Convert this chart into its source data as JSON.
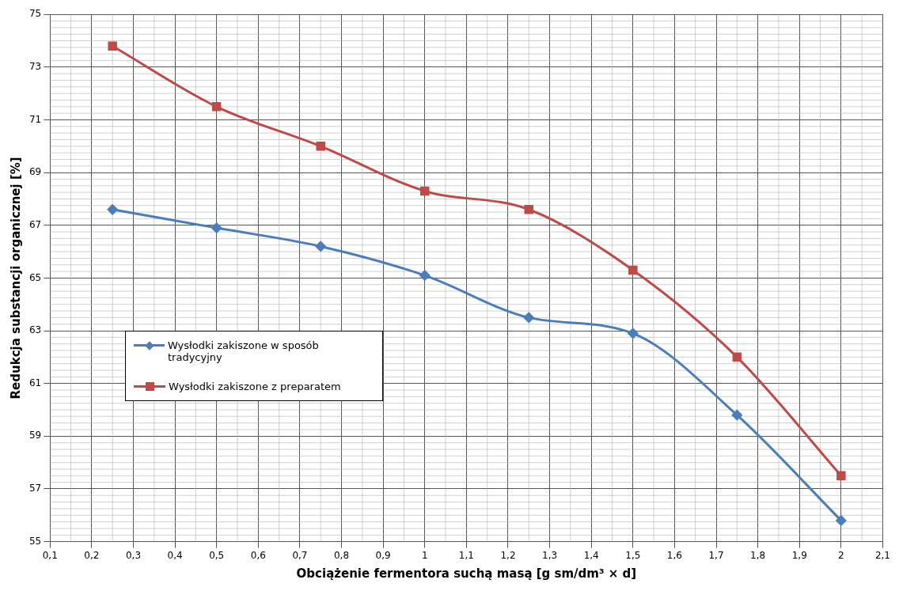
{
  "chart_data": {
    "type": "line",
    "xlabel": "Obciążenie fermentora suchą masą [g sm/dm³ × d]",
    "ylabel": "Redukcja substancji organicznej [%]",
    "x": [
      0.25,
      0.5,
      0.75,
      1,
      1.25,
      1.5,
      1.75,
      2
    ],
    "series": [
      {
        "name": "Wysłodki zakiszone w sposób tradycyjny",
        "color": "#4a7ebb",
        "marker": "diamond",
        "values": [
          67.6,
          66.9,
          66.2,
          65.1,
          63.5,
          62.9,
          59.8,
          55.8
        ]
      },
      {
        "name": "Wysłodki zakiszone z preparatem",
        "color": "#be4b48",
        "marker": "square",
        "values": [
          73.8,
          71.5,
          70.0,
          68.3,
          67.6,
          65.3,
          62.0,
          57.5
        ]
      }
    ],
    "xlim": [
      0.1,
      2.1
    ],
    "xticks": [
      {
        "value": 0.1,
        "label": "0,1"
      },
      {
        "value": 0.2,
        "label": "0,2"
      },
      {
        "value": 0.3,
        "label": "0,3"
      },
      {
        "value": 0.4,
        "label": "0,4"
      },
      {
        "value": 0.5,
        "label": "0,5"
      },
      {
        "value": 0.6,
        "label": "0,6"
      },
      {
        "value": 0.7,
        "label": "0,7"
      },
      {
        "value": 0.8,
        "label": "0,8"
      },
      {
        "value": 0.9,
        "label": "0,9"
      },
      {
        "value": 1,
        "label": "1"
      },
      {
        "value": 1.1,
        "label": "1,1"
      },
      {
        "value": 1.2,
        "label": "1,2"
      },
      {
        "value": 1.3,
        "label": "1,3"
      },
      {
        "value": 1.4,
        "label": "1,4"
      },
      {
        "value": 1.5,
        "label": "1,5"
      },
      {
        "value": 1.6,
        "label": "1,6"
      },
      {
        "value": 1.7,
        "label": "1,7"
      },
      {
        "value": 1.8,
        "label": "1,8"
      },
      {
        "value": 1.9,
        "label": "1,9"
      },
      {
        "value": 2,
        "label": "2"
      },
      {
        "value": 2.1,
        "label": "2,1"
      }
    ],
    "ylim": [
      55,
      75
    ],
    "yticks": [
      55,
      57,
      59,
      61,
      63,
      65,
      67,
      69,
      71,
      73,
      75
    ],
    "grid": true,
    "legend": "left"
  }
}
